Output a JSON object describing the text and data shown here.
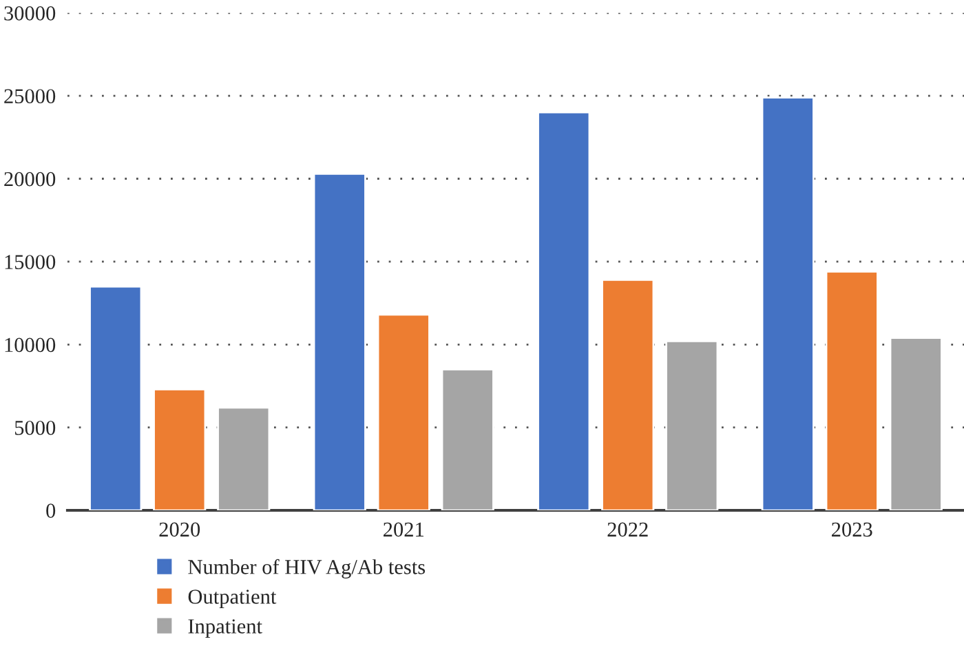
{
  "chart_data": {
    "type": "bar",
    "categories": [
      "2020",
      "2021",
      "2022",
      "2023"
    ],
    "series": [
      {
        "name": "Number of HIV Ag/Ab tests",
        "color": "#4472c4",
        "values": [
          13500,
          20300,
          24000,
          24900
        ]
      },
      {
        "name": "Outpatient",
        "color": "#ed7d31",
        "values": [
          7300,
          11800,
          13900,
          14400
        ]
      },
      {
        "name": "Inpatient",
        "color": "#a5a5a5",
        "values": [
          6200,
          8500,
          10200,
          10400
        ]
      }
    ],
    "ylim": [
      0,
      30000
    ],
    "yticks": [
      0,
      5000,
      10000,
      15000,
      20000,
      25000,
      30000
    ],
    "grid": "y",
    "legend": "bottom left",
    "line_style": "dotted"
  }
}
